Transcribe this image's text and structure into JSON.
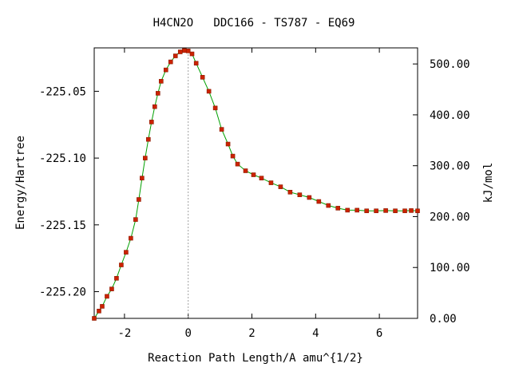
{
  "chart_data": {
    "type": "line",
    "title": "H4CN2O   DDC166 - TS787 - EQ69",
    "xlabel": "Reaction Path Length/A amu^{1/2}",
    "ylabel": "Energy/Hartree",
    "y2label": "kJ/mol",
    "xlim": [
      -2.95,
      7.2
    ],
    "ylim": [
      -225.22,
      -225.0175
    ],
    "y2lim": [
      0,
      531.6
    ],
    "x_ticks": [
      -2,
      0,
      2,
      4,
      6
    ],
    "x_tick_labels": [
      "-2",
      "0",
      "2",
      "4",
      "6"
    ],
    "y_ticks": [
      -225.05,
      -225.1,
      -225.15,
      -225.2
    ],
    "y_tick_labels": [
      "-225.05",
      "-225.10",
      "-225.15",
      "-225.20"
    ],
    "y2_ticks": [
      500,
      400,
      300,
      200,
      100,
      0
    ],
    "y2_tick_labels": [
      "500.00",
      "400.00",
      "300.00",
      "200.00",
      "100.00",
      "0.00"
    ],
    "ts_x": 0,
    "grid": false,
    "legend": "none",
    "colors": {
      "curve": "#00a000",
      "points": "#cc2200",
      "point_edge": "#8b1a00",
      "ts_line": "#a0a0a0"
    },
    "series": [
      {
        "x": [
          -2.95,
          -2.8,
          -2.7,
          -2.55,
          -2.4,
          -2.25,
          -2.1,
          -1.95,
          -1.8,
          -1.65,
          -1.55,
          -1.45,
          -1.35,
          -1.25,
          -1.15,
          -1.05,
          -0.95,
          -0.85,
          -0.7,
          -0.55,
          -0.4,
          -0.25,
          -0.12,
          0.0,
          0.12,
          0.25,
          0.45,
          0.65,
          0.85,
          1.05,
          1.25,
          1.4,
          1.55,
          1.8,
          2.05,
          2.3,
          2.6,
          2.9,
          3.2,
          3.5,
          3.8,
          4.1,
          4.4,
          4.7,
          5.0,
          5.3,
          5.6,
          5.9,
          6.2,
          6.5,
          6.8,
          7.0,
          7.2
        ],
        "y": [
          -225.22,
          -225.2145,
          -225.211,
          -225.2035,
          -225.198,
          -225.19,
          -225.18,
          -225.1705,
          -225.16,
          -225.146,
          -225.131,
          -225.115,
          -225.1,
          -225.086,
          -225.073,
          -225.0615,
          -225.0515,
          -225.0425,
          -225.034,
          -225.028,
          -225.0235,
          -225.0205,
          -225.0195,
          -225.0198,
          -225.022,
          -225.029,
          -225.0395,
          -225.05,
          -225.0625,
          -225.0785,
          -225.0895,
          -225.0985,
          -225.1045,
          -225.1095,
          -225.1125,
          -225.115,
          -225.1185,
          -225.1215,
          -225.1255,
          -225.1275,
          -225.1295,
          -225.1325,
          -225.1355,
          -225.1375,
          -225.139,
          -225.139,
          -225.1395,
          -225.1395,
          -225.1393,
          -225.1395,
          -225.1395,
          -225.1393,
          -225.1395
        ]
      }
    ]
  }
}
